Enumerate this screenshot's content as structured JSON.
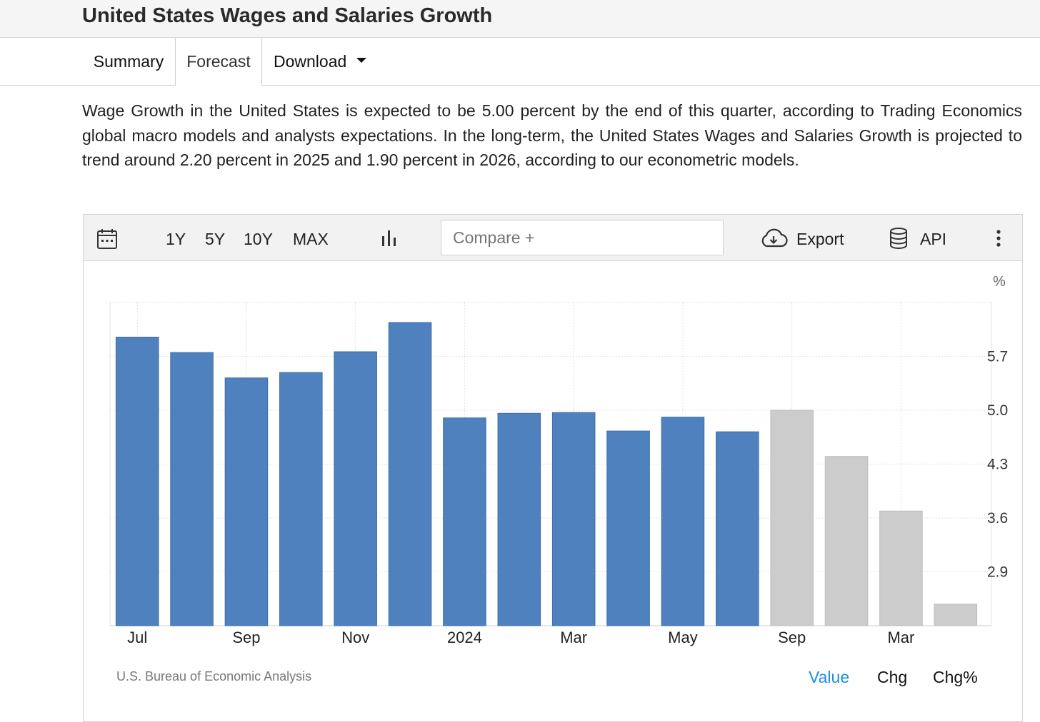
{
  "page": {
    "title": "United States Wages and Salaries Growth",
    "tabs": [
      "Summary",
      "Forecast",
      "Download"
    ],
    "description": "Wage Growth in the United States is expected to be 5.00 percent by the end of this quarter, according to Trading Economics global macro models and analysts expectations. In the long-term, the United States Wages and Salaries Growth is projected to trend around 2.20 percent in 2025 and 1.90 percent in 2026, according to our econometric models."
  },
  "toolbar": {
    "ranges": [
      "1Y",
      "5Y",
      "10Y",
      "MAX"
    ],
    "compare_placeholder": "Compare +",
    "export_label": "Export",
    "api_label": "API",
    "icons": [
      "calendar-icon",
      "bar-chart-icon",
      "cloud-download-icon",
      "database-icon",
      "more-vertical-icon"
    ]
  },
  "footer": {
    "source": "U.S. Bureau of Economic Analysis",
    "modes": [
      "Value",
      "Chg",
      "Chg%"
    ],
    "active_mode": "Value"
  },
  "colors": {
    "actual_bar": "#4e81bd",
    "forecast_bar": "#cccccc",
    "active_link": "#1a8fe3"
  },
  "chart_data": {
    "type": "bar",
    "unit_label": "%",
    "y_ticks": [
      2.9,
      3.6,
      4.3,
      5.0,
      5.7
    ],
    "ylim": [
      2.2,
      6.4
    ],
    "grid": true,
    "y_axis_side": "right",
    "x_tick_labels": [
      "Jul",
      "Sep",
      "Nov",
      "2024",
      "Mar",
      "May",
      "Sep",
      "Mar"
    ],
    "x_tick_bar_index": [
      0,
      2,
      4,
      6,
      8,
      10,
      12,
      14
    ],
    "series": [
      {
        "status": "actual",
        "values": [
          5.95,
          5.75,
          5.42,
          5.49,
          5.76,
          6.14,
          4.9,
          4.96,
          4.97,
          4.73,
          4.91,
          4.72
        ]
      },
      {
        "status": "forecast",
        "values": [
          5.0,
          4.4,
          3.69,
          2.48
        ]
      }
    ]
  }
}
